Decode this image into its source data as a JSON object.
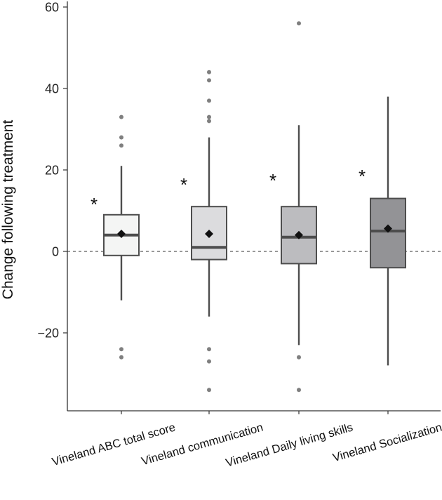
{
  "chart_data": {
    "type": "box",
    "title": "",
    "xlabel": "",
    "ylabel": "Change following treatment",
    "ylim": [
      -38,
      60
    ],
    "yticks": [
      -20,
      0,
      20,
      40,
      60
    ],
    "yticklabels": [
      "−20",
      "0",
      "20",
      "40",
      "60"
    ],
    "reference_line": {
      "y": 0,
      "style": "dashed"
    },
    "grid": false,
    "legend": "none",
    "significance_marker": "*",
    "boxes": [
      {
        "category": "Vineland ABC total score",
        "color": "#f4f5f4",
        "whisker_low": -12,
        "q1": -1,
        "median": 4,
        "q3": 9,
        "whisker_high": 21,
        "mean": 4.3,
        "outliers": [
          33,
          28,
          26,
          -24,
          -26
        ],
        "significant": true
      },
      {
        "category": "Vineland communication",
        "color": "#dcdcde",
        "whisker_low": -16,
        "q1": -2,
        "median": 1,
        "q3": 11,
        "whisker_high": 28,
        "mean": 4.3,
        "outliers": [
          44,
          42,
          37,
          33,
          32,
          -24,
          -27,
          -34
        ],
        "significant": true
      },
      {
        "category": "Vineland Daily living skills",
        "color": "#bcbcbf",
        "whisker_low": -23,
        "q1": -3,
        "median": 3.5,
        "q3": 11,
        "whisker_high": 31,
        "mean": 4,
        "outliers": [
          56,
          -26,
          -34
        ],
        "significant": true
      },
      {
        "category": "Vineland Socialization",
        "color": "#939396",
        "whisker_low": -28,
        "q1": -4,
        "median": 5,
        "q3": 13,
        "whisker_high": 38,
        "mean": 5.6,
        "outliers": [],
        "significant": true
      }
    ],
    "colors": {
      "box_stroke": "#4d4d4d",
      "median": "#4d4d4d",
      "mean_marker": "#111111",
      "outlier": "#7f7f7f",
      "axis": "#333333"
    }
  }
}
